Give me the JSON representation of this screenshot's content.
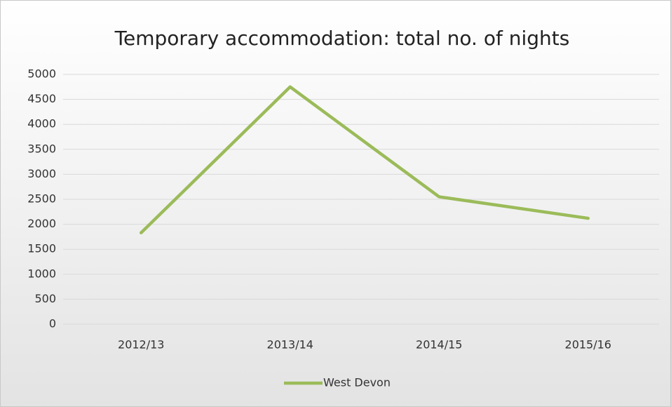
{
  "chart_data": {
    "type": "line",
    "title": "Temporary accommodation: total no. of nights",
    "categories": [
      "2012/13",
      "2013/14",
      "2014/15",
      "2015/16"
    ],
    "series": [
      {
        "name": "West Devon",
        "color": "#9bbb59",
        "values": [
          1830,
          4750,
          2550,
          2120
        ]
      }
    ],
    "ylim": [
      0,
      5000
    ],
    "yticks": [
      0,
      500,
      1000,
      1500,
      2000,
      2500,
      3000,
      3500,
      4000,
      4500,
      5000
    ],
    "grid": true,
    "legend": "bottom"
  }
}
